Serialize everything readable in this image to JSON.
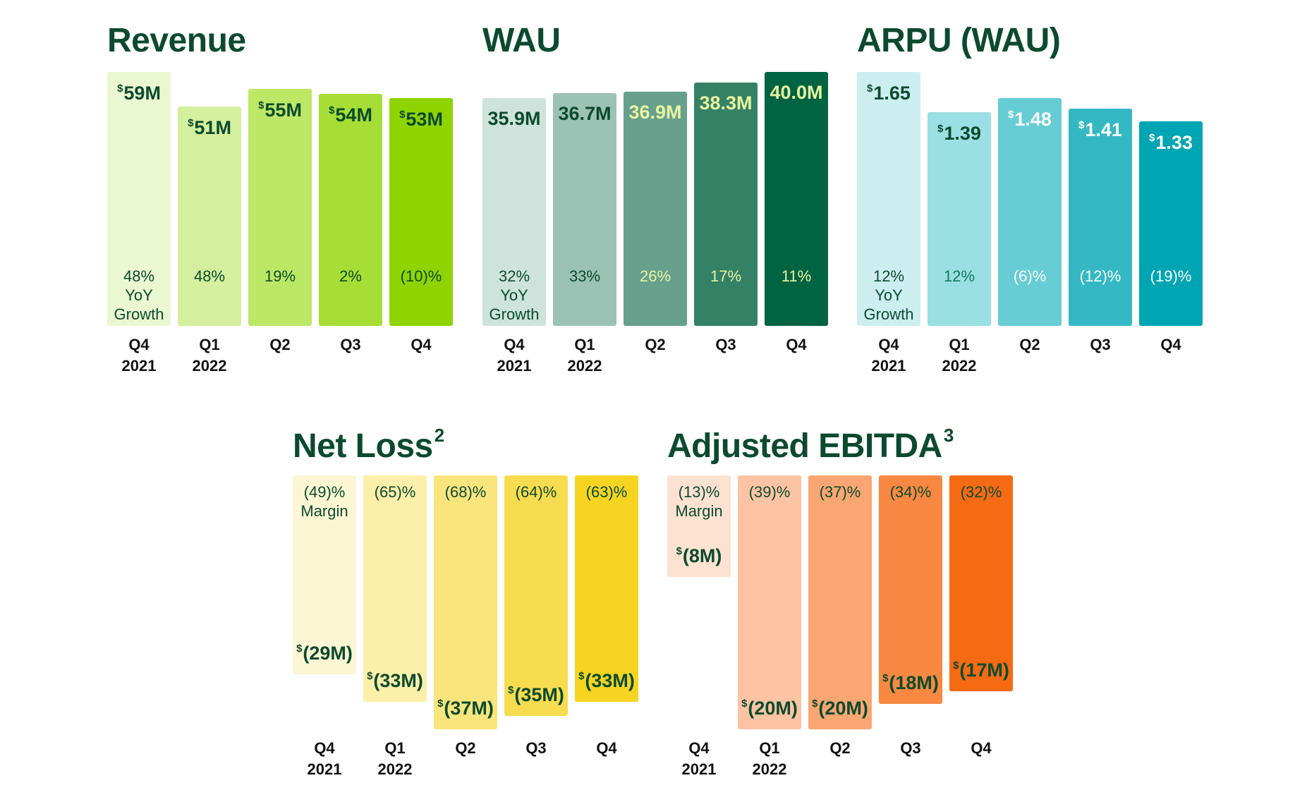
{
  "chart_data": [
    {
      "id": "revenue",
      "type": "bar",
      "title": "Revenue",
      "title_sup": "",
      "categories": [
        [
          "Q4",
          "2021"
        ],
        [
          "Q1",
          "2022"
        ],
        [
          "Q2",
          ""
        ],
        [
          "Q3",
          ""
        ],
        [
          "Q4",
          ""
        ]
      ],
      "values": [
        59,
        51,
        55,
        54,
        53
      ],
      "value_labels": [
        "59M",
        "51M",
        "55M",
        "54M",
        "53M"
      ],
      "currency": "$",
      "percent_labels": [
        "48%",
        "48%",
        "19%",
        "2%",
        "(10)%"
      ],
      "percent_sublabel": [
        "YoY",
        "Growth"
      ],
      "colors": [
        "#eaf7d0",
        "#d4ef9d",
        "#bce866",
        "#a6de35",
        "#8fd400"
      ],
      "value_text_colors": [
        "#0b4a2e",
        "#0b4a2e",
        "#0b4a2e",
        "#0b4a2e",
        "#0b4a2e"
      ],
      "pct_text_colors": [
        "#0b4a2e",
        "#0b4a2e",
        "#0b4a2e",
        "#0b4a2e",
        "#0b4a2e"
      ],
      "ylim": [
        0,
        59
      ],
      "direction": "up"
    },
    {
      "id": "wau",
      "type": "bar",
      "title": "WAU",
      "title_sup": "",
      "categories": [
        [
          "Q4",
          "2021"
        ],
        [
          "Q1",
          "2022"
        ],
        [
          "Q2",
          ""
        ],
        [
          "Q3",
          ""
        ],
        [
          "Q4",
          ""
        ]
      ],
      "values": [
        35.9,
        36.7,
        36.9,
        38.3,
        40.0
      ],
      "value_labels": [
        "35.9M",
        "36.7M",
        "36.9M",
        "38.3M",
        "40.0M"
      ],
      "currency": "",
      "percent_labels": [
        "32%",
        "33%",
        "26%",
        "17%",
        "11%"
      ],
      "percent_sublabel": [
        "YoY",
        "Growth"
      ],
      "colors": [
        "#cde3dc",
        "#9bc2b4",
        "#67a08d",
        "#348166",
        "#006341"
      ],
      "value_text_colors": [
        "#0b4a2e",
        "#0b4a2e",
        "#e8f5a0",
        "#e8f5a0",
        "#e8f5a0"
      ],
      "pct_text_colors": [
        "#0b4a2e",
        "#0b4a2e",
        "#e8f5a0",
        "#e8f5a0",
        "#e8f5a0"
      ],
      "ylim": [
        0,
        40.0
      ],
      "direction": "up"
    },
    {
      "id": "arpu",
      "type": "bar",
      "title": "ARPU (WAU)",
      "title_sup": "",
      "categories": [
        [
          "Q4",
          "2021"
        ],
        [
          "Q1",
          "2022"
        ],
        [
          "Q2",
          ""
        ],
        [
          "Q3",
          ""
        ],
        [
          "Q4",
          ""
        ]
      ],
      "values": [
        1.65,
        1.39,
        1.48,
        1.41,
        1.33
      ],
      "value_labels": [
        "1.65",
        "1.39",
        "1.48",
        "1.41",
        "1.33"
      ],
      "currency": "$",
      "percent_labels": [
        "12%",
        "12%",
        "(6)%",
        "(12)%",
        "(19)%"
      ],
      "percent_sublabel": [
        "YoY",
        "Growth"
      ],
      "colors": [
        "#cdeef0",
        "#9adfe3",
        "#66cdd4",
        "#34b9c4",
        "#00a5b4"
      ],
      "value_text_colors": [
        "#0b4a2e",
        "#0b4a2e",
        "#ffffff",
        "#ffffff",
        "#ffffff"
      ],
      "pct_text_colors": [
        "#0b4a2e",
        "#137a5e",
        "#ffffff",
        "#ffffff",
        "#ffffff"
      ],
      "ylim": [
        0,
        1.65
      ],
      "direction": "up"
    },
    {
      "id": "netloss",
      "type": "bar",
      "title": "Net Loss",
      "title_sup": "2",
      "categories": [
        [
          "Q4",
          "2021"
        ],
        [
          "Q1",
          "2022"
        ],
        [
          "Q2",
          ""
        ],
        [
          "Q3",
          ""
        ],
        [
          "Q4",
          ""
        ]
      ],
      "values": [
        -29,
        -33,
        -37,
        -35,
        -33
      ],
      "value_labels": [
        "(29M)",
        "(33M)",
        "(37M)",
        "(35M)",
        "(33M)"
      ],
      "currency": "$",
      "percent_labels": [
        "(49)%",
        "(65)%",
        "(68)%",
        "(64)%",
        "(63)%"
      ],
      "percent_sublabel": [
        "Margin"
      ],
      "colors": [
        "#fdf6d4",
        "#fcefaa",
        "#fae57c",
        "#f8dc4f",
        "#f6d421"
      ],
      "value_text_colors": [
        "#0b4a2e",
        "#0b4a2e",
        "#0b4a2e",
        "#0b4a2e",
        "#0b4a2e"
      ],
      "pct_text_colors": [
        "#0b4a2e",
        "#0b4a2e",
        "#0b4a2e",
        "#0b4a2e",
        "#0b4a2e"
      ],
      "ylim": [
        -37,
        0
      ],
      "direction": "down"
    },
    {
      "id": "ebitda",
      "type": "bar",
      "title": "Adjusted EBITDA",
      "title_sup": "3",
      "categories": [
        [
          "Q4",
          "2021"
        ],
        [
          "Q1",
          "2022"
        ],
        [
          "Q2",
          ""
        ],
        [
          "Q3",
          ""
        ],
        [
          "Q4",
          ""
        ]
      ],
      "values": [
        -8,
        -20,
        -20,
        -18,
        -17
      ],
      "value_labels": [
        "(8M)",
        "(20M)",
        "(20M)",
        "(18M)",
        "(17M)"
      ],
      "currency": "$",
      "percent_labels": [
        "(13)%",
        "(39)%",
        "(37)%",
        "(34)%",
        "(32)%"
      ],
      "percent_sublabel": [
        "Margin"
      ],
      "colors": [
        "#fde2d2",
        "#fcc4a3",
        "#faa673",
        "#f88842",
        "#f66a14"
      ],
      "value_text_colors": [
        "#0b4a2e",
        "#0b4a2e",
        "#0b4a2e",
        "#0b4a2e",
        "#0b4a2e"
      ],
      "pct_text_colors": [
        "#0b4a2e",
        "#0b4a2e",
        "#0b4a2e",
        "#0b4a2e",
        "#0b4a2e"
      ],
      "ylim": [
        -20,
        0
      ],
      "direction": "down"
    }
  ]
}
